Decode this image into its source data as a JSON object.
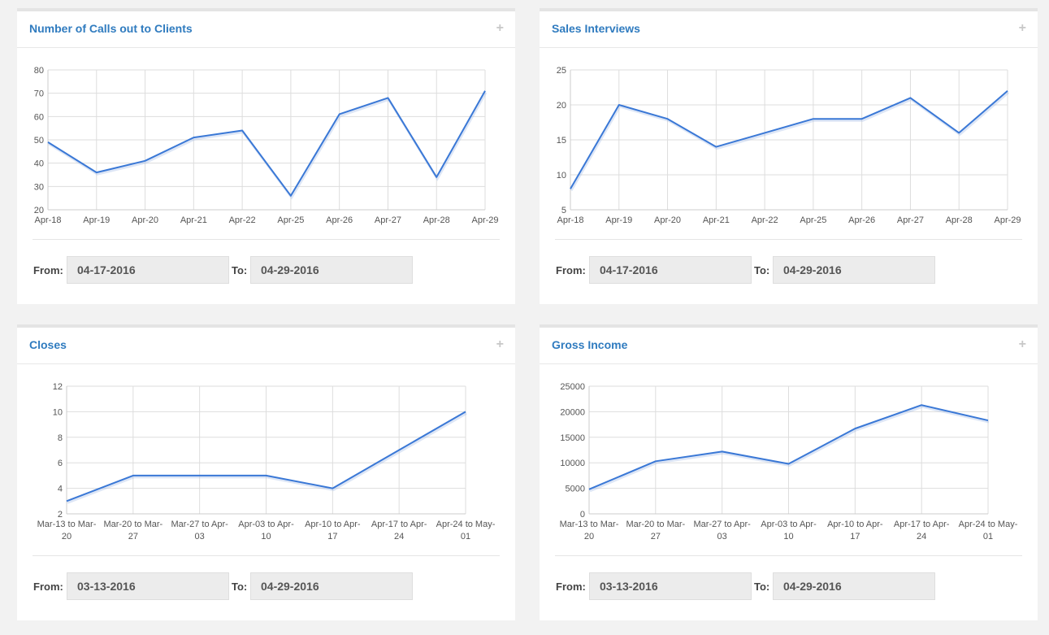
{
  "panels": [
    {
      "title": "Number of Calls out to Clients",
      "from_label": "From:",
      "from_value": "04-17-2016",
      "to_label": "To:",
      "to_value": "04-29-2016"
    },
    {
      "title": "Sales Interviews",
      "from_label": "From:",
      "from_value": "04-17-2016",
      "to_label": "To:",
      "to_value": "04-29-2016"
    },
    {
      "title": "Closes",
      "from_label": "From:",
      "from_value": "03-13-2016",
      "to_label": "To:",
      "to_value": "04-29-2016"
    },
    {
      "title": "Gross Income",
      "from_label": "From:",
      "from_value": "03-13-2016",
      "to_label": "To:",
      "to_value": "04-29-2016"
    }
  ],
  "chart_data": [
    {
      "type": "line",
      "title": "Number of Calls out to Clients",
      "categories": [
        "Apr-18",
        "Apr-19",
        "Apr-20",
        "Apr-21",
        "Apr-22",
        "Apr-25",
        "Apr-26",
        "Apr-27",
        "Apr-28",
        "Apr-29"
      ],
      "values": [
        49,
        36,
        41,
        51,
        54,
        26,
        61,
        68,
        34,
        71
      ],
      "ylim": [
        20,
        80
      ],
      "yticks": [
        20,
        30,
        40,
        50,
        60,
        70,
        80
      ],
      "grid": true,
      "line_color": "#3a78d6"
    },
    {
      "type": "line",
      "title": "Sales Interviews",
      "categories": [
        "Apr-18",
        "Apr-19",
        "Apr-20",
        "Apr-21",
        "Apr-22",
        "Apr-25",
        "Apr-26",
        "Apr-27",
        "Apr-28",
        "Apr-29"
      ],
      "values": [
        8,
        20,
        18,
        14,
        16,
        18,
        18,
        21,
        16,
        22
      ],
      "ylim": [
        5,
        25
      ],
      "yticks": [
        5,
        10,
        15,
        20,
        25
      ],
      "grid": true,
      "line_color": "#3a78d6"
    },
    {
      "type": "line",
      "title": "Closes",
      "categories": [
        [
          "Mar-13 to Mar-",
          "20"
        ],
        [
          "Mar-20 to Mar-",
          "27"
        ],
        [
          "Mar-27 to Apr-",
          "03"
        ],
        [
          "Apr-03 to Apr-",
          "10"
        ],
        [
          "Apr-10 to Apr-",
          "17"
        ],
        [
          "Apr-17 to Apr-",
          "24"
        ],
        [
          "Apr-24 to May-",
          "01"
        ]
      ],
      "values": [
        3,
        5,
        5,
        5,
        4,
        7,
        10
      ],
      "ylim": [
        2,
        12
      ],
      "yticks": [
        2,
        4,
        6,
        8,
        10,
        12
      ],
      "grid": true,
      "line_color": "#3a78d6"
    },
    {
      "type": "line",
      "title": "Gross Income",
      "categories": [
        [
          "Mar-13 to Mar-",
          "20"
        ],
        [
          "Mar-20 to Mar-",
          "27"
        ],
        [
          "Mar-27 to Apr-",
          "03"
        ],
        [
          "Apr-03 to Apr-",
          "10"
        ],
        [
          "Apr-10 to Apr-",
          "17"
        ],
        [
          "Apr-17 to Apr-",
          "24"
        ],
        [
          "Apr-24 to May-",
          "01"
        ]
      ],
      "values": [
        4800,
        10300,
        12200,
        9800,
        16700,
        21300,
        18300
      ],
      "ylim": [
        0,
        25000
      ],
      "yticks": [
        0,
        5000,
        10000,
        15000,
        20000,
        25000
      ],
      "grid": true,
      "line_color": "#3a78d6"
    }
  ]
}
